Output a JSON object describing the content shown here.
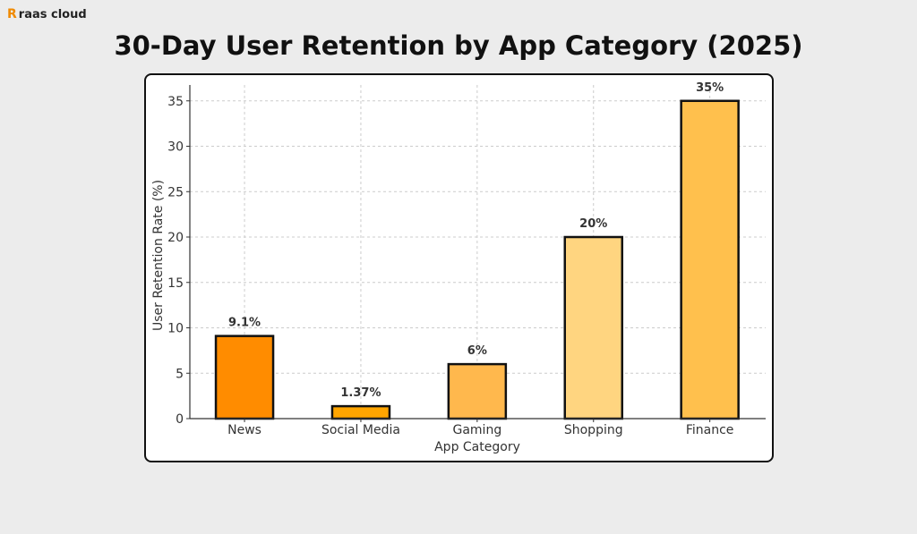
{
  "brand": {
    "name": "raas cloud",
    "mark": "R"
  },
  "chart_data": {
    "type": "bar",
    "title": "30-Day User Retention by App Category (2025)",
    "xlabel": "App Category",
    "ylabel": "User Retention Rate (%)",
    "categories": [
      "News",
      "Social Media",
      "Gaming",
      "Shopping",
      "Finance"
    ],
    "values": [
      9.1,
      1.37,
      6,
      20,
      35
    ],
    "data_labels": [
      "9.1%",
      "1.37%",
      "6%",
      "20%",
      "35%"
    ],
    "colors": [
      "#FF8C00",
      "#FFA500",
      "#FFB84D",
      "#FFD580",
      "#FFC04D"
    ],
    "ylim": [
      0,
      36.75
    ],
    "yticks": [
      0,
      5,
      10,
      15,
      20,
      25,
      30,
      35
    ],
    "grid": true
  }
}
